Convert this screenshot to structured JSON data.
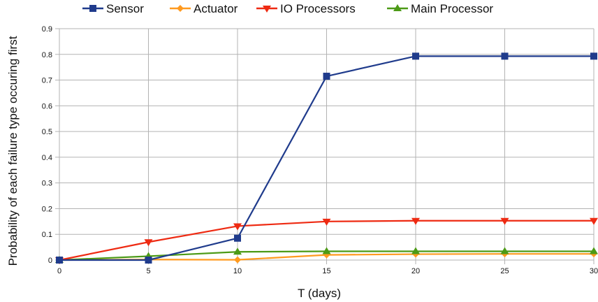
{
  "chart_data": {
    "type": "line",
    "title": "",
    "xlabel": "T (days)",
    "ylabel": "Probability of each failure type occuring first",
    "x": [
      0,
      5,
      10,
      15,
      20,
      25,
      30
    ],
    "xlim": [
      0,
      30
    ],
    "ylim": [
      0,
      0.9
    ],
    "xticks": [
      "0",
      "5",
      "10",
      "15",
      "20",
      "25",
      "30"
    ],
    "yticks": [
      "0",
      "0.1",
      "0.2",
      "0.3",
      "0.4",
      "0.5",
      "0.6",
      "0.7",
      "0.8",
      "0.9"
    ],
    "grid": true,
    "legend_position": "top",
    "series": [
      {
        "name": "Sensor",
        "color": "#1f3b8c",
        "marker": "square",
        "values": [
          0,
          0,
          0.085,
          0.715,
          0.793,
          0.793,
          0.793
        ]
      },
      {
        "name": "Actuator",
        "color": "#ff9a1f",
        "marker": "diamond",
        "values": [
          0,
          0.002,
          0.001,
          0.02,
          0.023,
          0.024,
          0.024
        ]
      },
      {
        "name": "IO Processors",
        "color": "#ee2a12",
        "marker": "triangle-down",
        "values": [
          0,
          0.07,
          0.132,
          0.15,
          0.153,
          0.153,
          0.153
        ]
      },
      {
        "name": "Main Processor",
        "color": "#4c9a16",
        "marker": "triangle-up",
        "values": [
          0,
          0.015,
          0.032,
          0.034,
          0.034,
          0.034,
          0.034
        ]
      }
    ]
  }
}
